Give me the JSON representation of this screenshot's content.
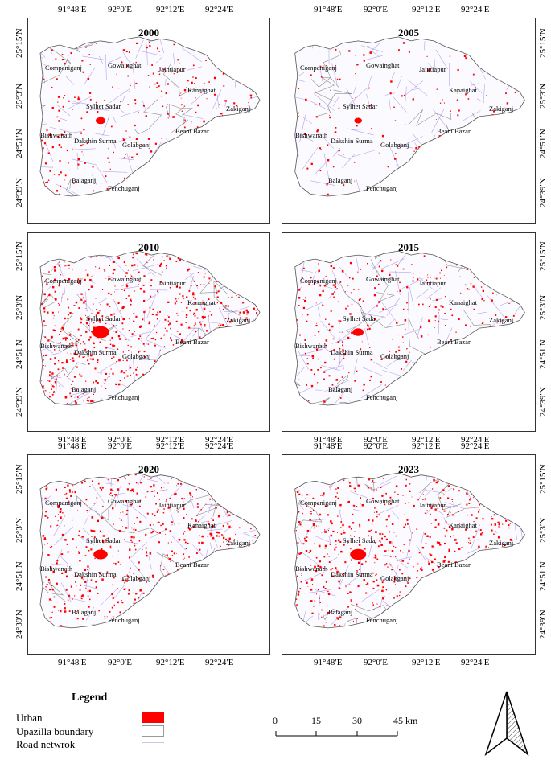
{
  "lon_ticks": [
    "91°48′E",
    "92°0′E",
    "92°12′E",
    "92°24′E"
  ],
  "lat_ticks": [
    "25°15′N",
    "25°3′N",
    "24°51′N",
    "24°39′N"
  ],
  "panels": [
    {
      "year": "2000",
      "urban_level": 0.25
    },
    {
      "year": "2005",
      "urban_level": 0.1
    },
    {
      "year": "2010",
      "urban_level": 0.85
    },
    {
      "year": "2015",
      "urban_level": 0.35
    },
    {
      "year": "2020",
      "urban_level": 0.6
    },
    {
      "year": "2023",
      "urban_level": 0.75
    }
  ],
  "places": [
    "Companiganj",
    "Gowainghat",
    "Jaintiapur",
    "Kanaighat",
    "Zakiganj",
    "Sylhet Sadar",
    "Beani Bazar",
    "Bishwanath",
    "Dakshin Surma",
    "Golabganj",
    "Balaganj",
    "Fenchuganj"
  ],
  "legend": {
    "title": "Legend",
    "items": [
      {
        "label": "Urban",
        "color": "#ff0000"
      },
      {
        "label": "Upazilla boundary",
        "color": "#ffffff"
      },
      {
        "label": "Road netwrok",
        "color": "#c8c8e6"
      }
    ]
  },
  "scale_bar": {
    "labels": [
      "0",
      "15",
      "30",
      "45 km"
    ]
  },
  "colors": {
    "urban": "#ff0000",
    "road": "#9a7fe0",
    "boundary": "#444444"
  }
}
